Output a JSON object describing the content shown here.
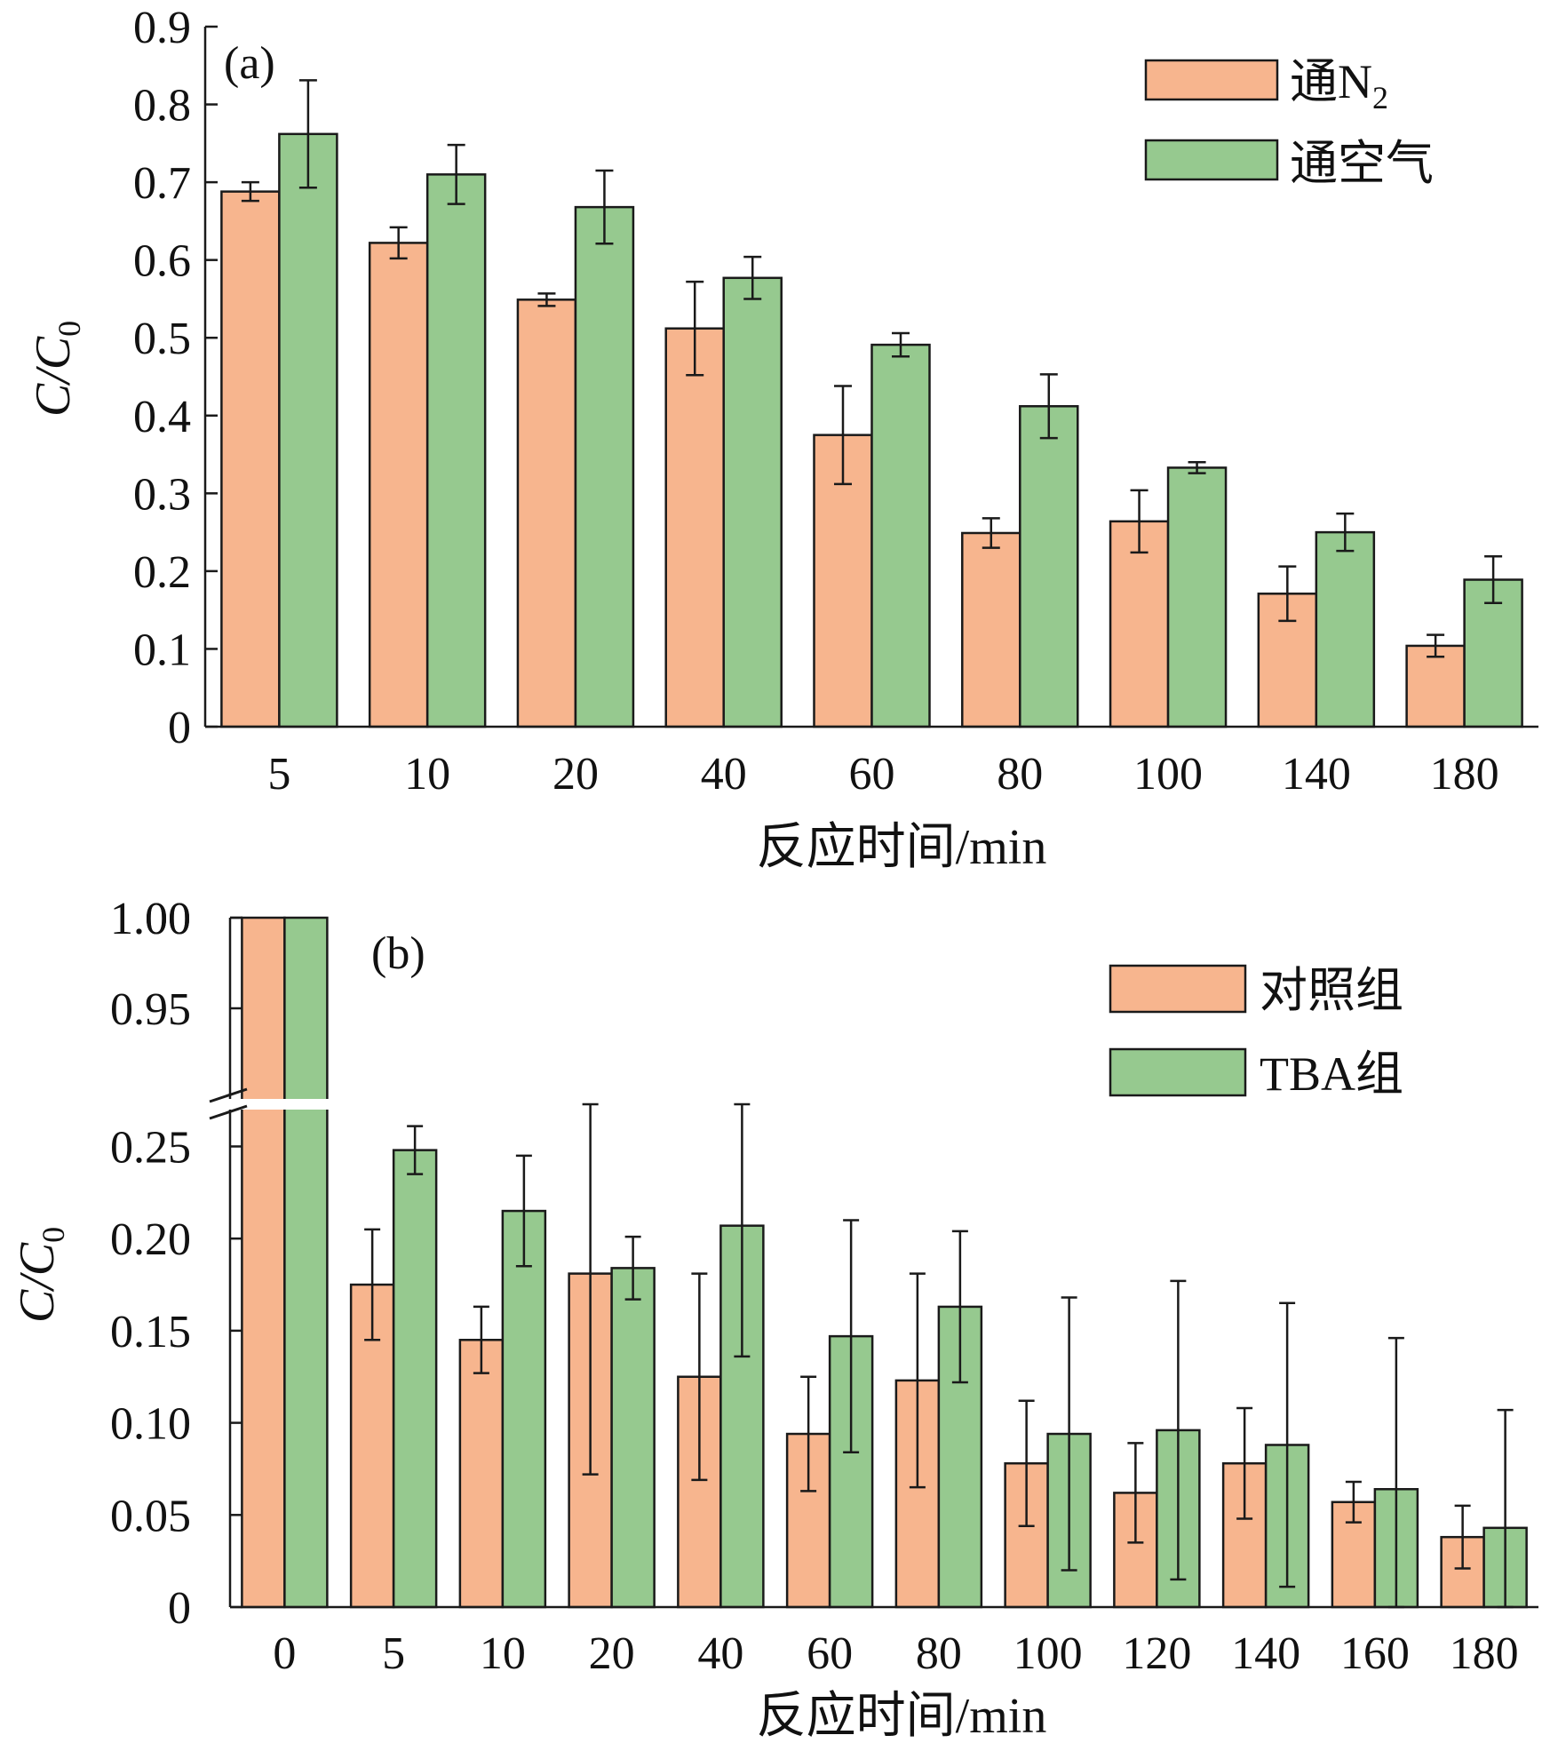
{
  "colors": {
    "series1": "#f7b58e",
    "series2": "#96c98f",
    "outline": "#1a1a1a"
  },
  "chart_data": [
    {
      "type": "bar",
      "panel_label": "(a)",
      "xlabel": "反应时间/min",
      "ylabel": "C/C0",
      "ylabel_main": "C/C",
      "ylabel_sub": "0",
      "ylim": [
        0,
        0.9
      ],
      "yticks": [
        "0",
        "0.1",
        "0.2",
        "0.3",
        "0.4",
        "0.5",
        "0.6",
        "0.7",
        "0.8",
        "0.9"
      ],
      "categories": [
        "5",
        "10",
        "20",
        "40",
        "60",
        "80",
        "100",
        "140",
        "180"
      ],
      "legend_position": "top-right",
      "series": [
        {
          "name": "通N2",
          "name_main": "通N",
          "name_sub": "2",
          "values": [
            0.688,
            0.622,
            0.549,
            0.512,
            0.375,
            0.249,
            0.264,
            0.171,
            0.104
          ],
          "errors": [
            0.012,
            0.02,
            0.008,
            0.06,
            0.063,
            0.019,
            0.04,
            0.035,
            0.014
          ]
        },
        {
          "name": "通空气",
          "name_main": "通空气",
          "name_sub": "",
          "values": [
            0.762,
            0.71,
            0.668,
            0.577,
            0.491,
            0.412,
            0.333,
            0.25,
            0.189
          ],
          "errors": [
            0.069,
            0.038,
            0.047,
            0.027,
            0.015,
            0.041,
            0.007,
            0.024,
            0.03
          ]
        }
      ]
    },
    {
      "type": "bar",
      "panel_label": "(b)",
      "xlabel": "反应时间/min",
      "ylabel": "C/C0",
      "ylabel_main": "C/C",
      "ylabel_sub": "0",
      "axis_break": [
        0.27,
        0.9
      ],
      "ylim_lower": [
        0,
        0.27
      ],
      "ylim_upper": [
        0.9,
        1.0
      ],
      "yticks_lower": [
        "0",
        "0.05",
        "0.10",
        "0.15",
        "0.20",
        "0.25"
      ],
      "yticks_upper": [
        "0.95",
        "1.00"
      ],
      "categories": [
        "0",
        "5",
        "10",
        "20",
        "40",
        "60",
        "80",
        "100",
        "120",
        "140",
        "160",
        "180"
      ],
      "legend_position": "top-right",
      "series": [
        {
          "name": "对照组",
          "name_main": "对照组",
          "name_sub": "",
          "values": [
            1.0,
            0.175,
            0.145,
            0.181,
            0.125,
            0.094,
            0.123,
            0.078,
            0.062,
            0.078,
            0.057,
            0.038
          ],
          "errors": [
            0,
            0.03,
            0.018,
            0.109,
            0.056,
            0.031,
            0.058,
            0.034,
            0.027,
            0.03,
            0.011,
            0.017
          ]
        },
        {
          "name": "TBA组",
          "name_main": "TBA组",
          "name_sub": "",
          "values": [
            1.0,
            0.248,
            0.215,
            0.184,
            0.207,
            0.147,
            0.163,
            0.094,
            0.096,
            0.088,
            0.064,
            0.043
          ],
          "errors": [
            0,
            0.013,
            0.03,
            0.017,
            0.071,
            0.063,
            0.041,
            0.074,
            0.081,
            0.077,
            0.082,
            0.064
          ]
        }
      ]
    }
  ]
}
